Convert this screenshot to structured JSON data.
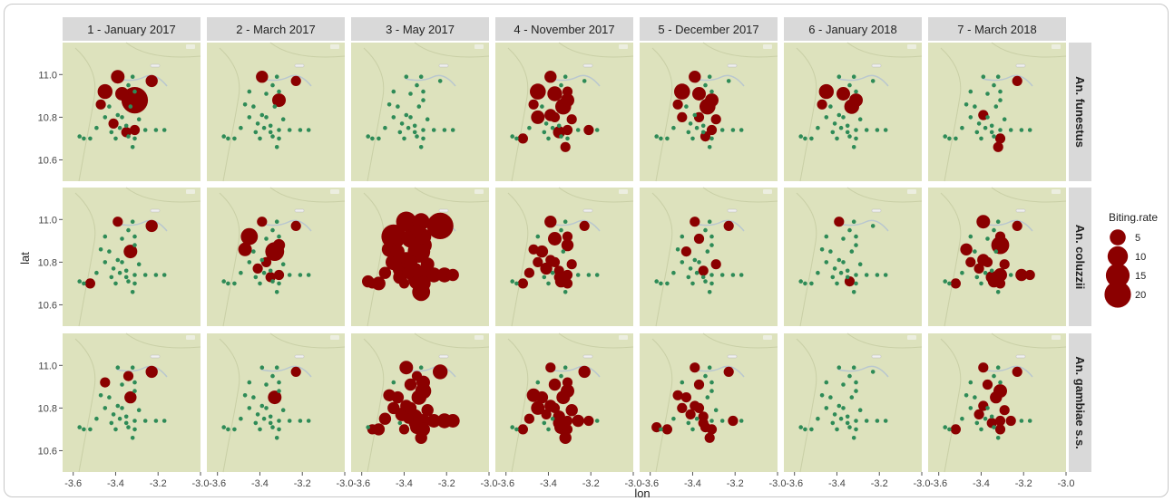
{
  "chart_data": {
    "type": "scatter",
    "xlabel": "lon",
    "ylabel": "lat",
    "xlim": [
      -3.65,
      -3.0
    ],
    "ylim": [
      10.5,
      11.15
    ],
    "x_ticks": [
      "-3.6",
      "-3.4",
      "-3.2",
      "-3.0"
    ],
    "y_ticks": [
      "11.0",
      "10.8",
      "10.6"
    ],
    "columns": [
      "1 - January 2017",
      "2 - March 2017",
      "3 - May 2017",
      "4 - November 2017",
      "5 - December 2017",
      "6 - January 2018",
      "7 - March 2018"
    ],
    "rows": [
      "An. funestus",
      "An. coluzzii",
      "An. gambiae s.s."
    ],
    "colors": {
      "zero": "#2e8b57",
      "positive": "#8b0000",
      "map_bg": "#dde2bd",
      "strip_bg": "#d9d9d9"
    },
    "legend": {
      "title": "Biting.rate",
      "position": "right",
      "entries": [
        {
          "label": "5",
          "value": 5
        },
        {
          "label": "10",
          "value": 10
        },
        {
          "label": "15",
          "value": 15
        },
        {
          "label": "20",
          "value": 20
        }
      ]
    },
    "sites": [
      [
        -3.45,
        10.92
      ],
      [
        -3.39,
        10.99
      ],
      [
        -3.37,
        10.91
      ],
      [
        -3.32,
        10.99
      ],
      [
        -3.23,
        10.97
      ],
      [
        -3.47,
        10.86
      ],
      [
        -3.43,
        10.85
      ],
      [
        -3.39,
        10.81
      ],
      [
        -3.33,
        10.85
      ],
      [
        -3.31,
        10.88
      ],
      [
        -3.31,
        10.92
      ],
      [
        -3.34,
        10.95
      ],
      [
        -3.45,
        10.8
      ],
      [
        -3.41,
        10.77
      ],
      [
        -3.37,
        10.8
      ],
      [
        -3.35,
        10.76
      ],
      [
        -3.29,
        10.79
      ],
      [
        -3.26,
        10.74
      ],
      [
        -3.31,
        10.74
      ],
      [
        -3.35,
        10.73
      ],
      [
        -3.34,
        10.71
      ],
      [
        -3.31,
        10.7
      ],
      [
        -3.32,
        10.66
      ],
      [
        -3.21,
        10.74
      ],
      [
        -3.17,
        10.74
      ],
      [
        -3.49,
        10.75
      ],
      [
        -3.52,
        10.7
      ],
      [
        -3.57,
        10.71
      ],
      [
        -3.55,
        10.7
      ],
      [
        -3.42,
        10.73
      ],
      [
        -3.4,
        10.7
      ],
      [
        -3.38,
        10.75
      ]
    ],
    "panels": [
      [
        [
          4,
          3,
          3,
          0,
          2,
          1,
          0,
          0,
          0,
          20,
          0,
          0,
          0,
          1,
          0,
          0,
          0,
          0,
          1,
          1,
          0,
          0,
          0,
          0,
          0,
          0,
          0,
          0,
          0,
          0,
          0,
          0
        ],
        [
          0,
          2,
          0,
          0,
          1,
          0,
          0,
          0,
          0,
          3,
          0,
          0,
          0,
          0,
          0,
          0,
          0,
          0,
          0,
          0,
          0,
          0,
          0,
          0,
          0,
          0,
          0,
          0,
          0,
          0,
          0,
          0
        ],
        [
          0,
          0,
          0,
          0,
          0,
          0,
          0,
          0,
          0,
          0,
          0,
          0,
          0,
          0,
          0,
          0,
          0,
          0,
          0,
          0,
          0,
          0,
          0,
          0,
          0,
          0,
          0,
          0,
          0,
          0,
          0,
          0
        ],
        [
          5,
          2,
          4,
          0,
          0,
          1,
          0,
          2,
          5,
          3,
          1,
          0,
          3,
          0,
          1,
          0,
          1,
          0,
          1,
          2,
          0,
          0,
          1,
          1,
          0,
          0,
          1,
          0,
          0,
          0,
          0,
          0
        ],
        [
          5,
          2,
          3,
          0,
          0,
          1,
          0,
          0,
          5,
          3,
          0,
          0,
          1,
          0,
          1,
          0,
          1,
          0,
          1,
          0,
          1,
          0,
          0,
          0,
          0,
          0,
          0,
          0,
          0,
          0,
          0,
          0
        ],
        [
          4,
          0,
          3,
          0,
          0,
          1,
          0,
          0,
          4,
          3,
          0,
          0,
          0,
          0,
          0,
          0,
          0,
          0,
          0,
          0,
          0,
          0,
          0,
          0,
          0,
          0,
          0,
          0,
          0,
          0,
          0,
          0
        ],
        [
          0,
          0,
          0,
          0,
          1,
          0,
          0,
          1,
          0,
          0,
          0,
          0,
          0,
          0,
          0,
          0,
          0,
          0,
          0,
          0,
          0,
          1,
          1,
          0,
          0,
          0,
          0,
          0,
          0,
          0,
          0,
          0
        ]
      ],
      [
        [
          0,
          1,
          0,
          0,
          2,
          0,
          0,
          0,
          3,
          0,
          0,
          0,
          0,
          0,
          0,
          0,
          0,
          0,
          0,
          0,
          0,
          0,
          0,
          0,
          0,
          0,
          1,
          0,
          0,
          0,
          0,
          0
        ],
        [
          6,
          1,
          0,
          0,
          1,
          3,
          0,
          0,
          8,
          2,
          0,
          0,
          0,
          1,
          1,
          0,
          0,
          0,
          1,
          1,
          0,
          0,
          0,
          0,
          0,
          0,
          0,
          0,
          0,
          0,
          0,
          0
        ],
        [
          16,
          10,
          7,
          6,
          20,
          4,
          3,
          5,
          13,
          6,
          5,
          2,
          5,
          8,
          3,
          5,
          3,
          4,
          4,
          4,
          5,
          4,
          7,
          4,
          2,
          2,
          3,
          2,
          1,
          3,
          1,
          2
        ],
        [
          0,
          2,
          3,
          0,
          1,
          1,
          2,
          1,
          0,
          2,
          1,
          0,
          1,
          2,
          1,
          1,
          1,
          0,
          1,
          1,
          2,
          1,
          0,
          0,
          0,
          1,
          1,
          0,
          0,
          0,
          0,
          0
        ],
        [
          0,
          1,
          1,
          0,
          1,
          0,
          1,
          0,
          0,
          0,
          0,
          0,
          0,
          0,
          0,
          1,
          1,
          0,
          0,
          0,
          0,
          0,
          0,
          0,
          0,
          0,
          0,
          0,
          0,
          0,
          0,
          0
        ],
        [
          0,
          1,
          0,
          0,
          0,
          0,
          0,
          0,
          0,
          0,
          0,
          0,
          0,
          0,
          0,
          0,
          0,
          0,
          0,
          0,
          1,
          0,
          0,
          0,
          0,
          0,
          0,
          0,
          0,
          0,
          0,
          0
        ],
        [
          0,
          3,
          0,
          0,
          1,
          2,
          0,
          2,
          0,
          7,
          1,
          0,
          1,
          1,
          1,
          0,
          1,
          0,
          3,
          2,
          2,
          1,
          0,
          2,
          1,
          0,
          1,
          0,
          0,
          0,
          0,
          0
        ]
      ],
      [
        [
          1,
          0,
          0,
          0,
          2,
          0,
          0,
          0,
          2,
          0,
          0,
          1,
          0,
          0,
          0,
          0,
          0,
          0,
          0,
          0,
          0,
          0,
          0,
          0,
          0,
          0,
          0,
          0,
          0,
          0,
          0,
          0
        ],
        [
          0,
          0,
          0,
          0,
          1,
          0,
          0,
          0,
          3,
          0,
          0,
          0,
          0,
          0,
          0,
          0,
          0,
          0,
          0,
          0,
          0,
          0,
          0,
          0,
          0,
          0,
          0,
          0,
          0,
          0,
          0,
          0
        ],
        [
          0,
          3,
          2,
          0,
          4,
          2,
          2,
          2,
          4,
          5,
          3,
          1,
          2,
          3,
          2,
          4,
          2,
          3,
          3,
          2,
          3,
          3,
          2,
          4,
          3,
          2,
          2,
          0,
          1,
          0,
          1,
          1
        ],
        [
          0,
          1,
          2,
          0,
          2,
          3,
          2,
          2,
          3,
          3,
          1,
          0,
          3,
          1,
          1,
          2,
          2,
          2,
          1,
          2,
          3,
          1,
          2,
          1,
          0,
          1,
          1,
          0,
          0,
          0,
          0,
          0
        ],
        [
          0,
          1,
          1,
          0,
          1,
          1,
          1,
          1,
          0,
          0,
          0,
          0,
          1,
          1,
          1,
          1,
          0,
          0,
          0,
          1,
          1,
          1,
          1,
          1,
          0,
          0,
          1,
          1,
          0,
          0,
          0,
          0
        ],
        [
          0,
          0,
          0,
          0,
          0,
          0,
          0,
          0,
          0,
          0,
          0,
          0,
          0,
          0,
          0,
          0,
          0,
          0,
          0,
          0,
          0,
          0,
          0,
          0,
          0,
          0,
          0,
          0,
          0,
          0,
          0,
          0
        ],
        [
          0,
          1,
          1,
          0,
          1,
          0,
          0,
          1,
          2,
          3,
          0,
          0,
          0,
          1,
          0,
          0,
          1,
          1,
          1,
          1,
          0,
          1,
          0,
          0,
          0,
          0,
          1,
          0,
          0,
          0,
          0,
          0
        ]
      ]
    ]
  }
}
